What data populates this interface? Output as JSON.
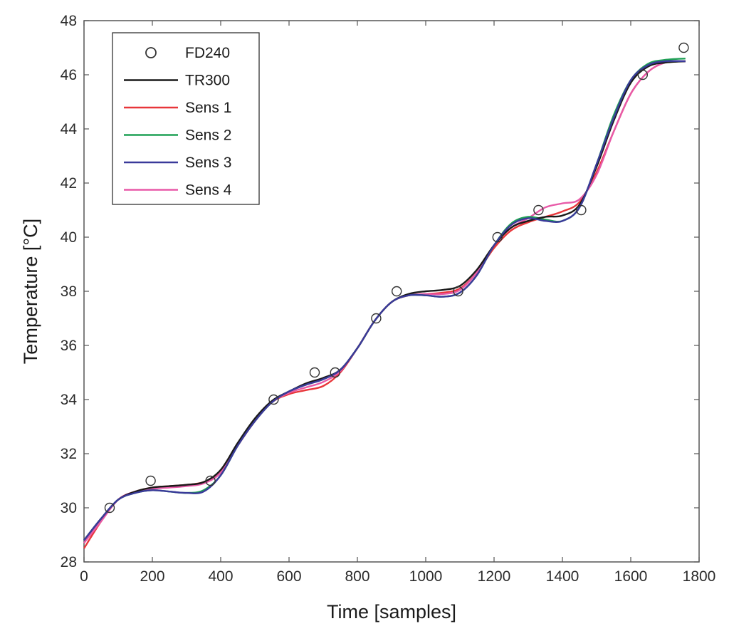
{
  "chart_data": {
    "type": "line",
    "title": "",
    "xlabel": "Time [samples]",
    "ylabel": "Temperature [°C]",
    "xlim": [
      0,
      1800
    ],
    "ylim": [
      28,
      48
    ],
    "xticks": [
      0,
      200,
      400,
      600,
      800,
      1000,
      1200,
      1400,
      1600,
      1800
    ],
    "yticks": [
      28,
      30,
      32,
      34,
      36,
      38,
      40,
      42,
      44,
      46,
      48
    ],
    "grid": false,
    "legend_position": "top-left",
    "series": [
      {
        "name": "FD240",
        "style": "markers",
        "color": "#333333",
        "x": [
          75,
          195,
          370,
          555,
          675,
          735,
          855,
          915,
          1095,
          1210,
          1330,
          1455,
          1635,
          1755
        ],
        "y": [
          30,
          31,
          31,
          34,
          35,
          35,
          37,
          38,
          38,
          40,
          41,
          41,
          46,
          47
        ]
      },
      {
        "name": "TR300",
        "style": "line",
        "color": "#1a1a1a",
        "x": [
          0,
          50,
          100,
          150,
          200,
          250,
          300,
          350,
          400,
          450,
          500,
          550,
          600,
          650,
          700,
          750,
          800,
          850,
          900,
          950,
          1000,
          1050,
          1100,
          1150,
          1200,
          1250,
          1300,
          1350,
          1400,
          1450,
          1500,
          1550,
          1600,
          1650,
          1700,
          1760
        ],
        "y": [
          28.8,
          29.6,
          30.3,
          30.6,
          30.75,
          30.8,
          30.85,
          30.95,
          31.4,
          32.4,
          33.3,
          33.95,
          34.3,
          34.6,
          34.8,
          35.1,
          35.9,
          36.9,
          37.6,
          37.9,
          38.0,
          38.05,
          38.2,
          38.8,
          39.7,
          40.35,
          40.6,
          40.75,
          40.8,
          41.2,
          42.6,
          44.3,
          45.7,
          46.3,
          46.45,
          46.5
        ]
      },
      {
        "name": "Sens 1",
        "style": "line",
        "color": "#e8363a",
        "x": [
          0,
          50,
          100,
          150,
          200,
          250,
          300,
          350,
          400,
          450,
          500,
          550,
          600,
          650,
          700,
          750,
          800,
          850,
          900,
          950,
          1000,
          1050,
          1100,
          1150,
          1200,
          1250,
          1300,
          1350,
          1400,
          1450,
          1500,
          1550,
          1600,
          1650,
          1700,
          1760
        ],
        "y": [
          28.5,
          29.5,
          30.3,
          30.6,
          30.75,
          30.8,
          30.85,
          30.95,
          31.3,
          32.3,
          33.2,
          33.9,
          34.2,
          34.35,
          34.5,
          35.0,
          35.9,
          36.9,
          37.6,
          37.85,
          37.9,
          37.95,
          38.1,
          38.7,
          39.6,
          40.25,
          40.55,
          40.75,
          40.95,
          41.3,
          42.4,
          43.9,
          45.3,
          46.1,
          46.45,
          46.5
        ]
      },
      {
        "name": "Sens 2",
        "style": "line",
        "color": "#1fa055",
        "x": [
          0,
          50,
          100,
          150,
          200,
          250,
          300,
          350,
          400,
          450,
          500,
          550,
          600,
          650,
          700,
          750,
          800,
          850,
          900,
          950,
          1000,
          1050,
          1100,
          1150,
          1200,
          1250,
          1300,
          1350,
          1400,
          1450,
          1500,
          1550,
          1600,
          1650,
          1700,
          1760
        ],
        "y": [
          28.8,
          29.6,
          30.3,
          30.55,
          30.65,
          30.6,
          30.55,
          30.65,
          31.2,
          32.3,
          33.2,
          33.9,
          34.3,
          34.55,
          34.75,
          35.1,
          35.9,
          36.9,
          37.6,
          37.85,
          37.85,
          37.8,
          37.95,
          38.6,
          39.7,
          40.5,
          40.75,
          40.65,
          40.6,
          41.1,
          42.7,
          44.5,
          45.8,
          46.4,
          46.55,
          46.6
        ]
      },
      {
        "name": "Sens 3",
        "style": "line",
        "color": "#3a3a9a",
        "x": [
          0,
          50,
          100,
          150,
          200,
          250,
          300,
          350,
          400,
          450,
          500,
          550,
          600,
          650,
          700,
          750,
          800,
          850,
          900,
          950,
          1000,
          1050,
          1100,
          1150,
          1200,
          1250,
          1300,
          1350,
          1400,
          1450,
          1500,
          1550,
          1600,
          1650,
          1700,
          1760
        ],
        "y": [
          28.8,
          29.6,
          30.3,
          30.55,
          30.65,
          30.6,
          30.55,
          30.6,
          31.2,
          32.3,
          33.2,
          33.9,
          34.3,
          34.55,
          34.75,
          35.1,
          35.9,
          36.9,
          37.6,
          37.85,
          37.85,
          37.8,
          37.95,
          38.6,
          39.7,
          40.45,
          40.7,
          40.6,
          40.6,
          41.1,
          42.7,
          44.4,
          45.8,
          46.35,
          46.5,
          46.5
        ]
      },
      {
        "name": "Sens 4",
        "style": "line",
        "color": "#e85aa8",
        "x": [
          0,
          50,
          100,
          150,
          200,
          250,
          300,
          350,
          400,
          450,
          500,
          550,
          600,
          650,
          700,
          750,
          800,
          850,
          900,
          950,
          1000,
          1050,
          1100,
          1150,
          1200,
          1250,
          1300,
          1350,
          1400,
          1450,
          1500,
          1550,
          1600,
          1650,
          1700,
          1760
        ],
        "y": [
          28.7,
          29.5,
          30.3,
          30.6,
          30.7,
          30.75,
          30.8,
          30.9,
          31.3,
          32.3,
          33.2,
          33.9,
          34.25,
          34.45,
          34.65,
          35.05,
          35.9,
          36.9,
          37.6,
          37.85,
          37.9,
          37.9,
          38.05,
          38.7,
          39.7,
          40.35,
          40.7,
          41.1,
          41.25,
          41.4,
          42.3,
          43.9,
          45.3,
          46.1,
          46.45,
          46.5
        ]
      }
    ]
  }
}
